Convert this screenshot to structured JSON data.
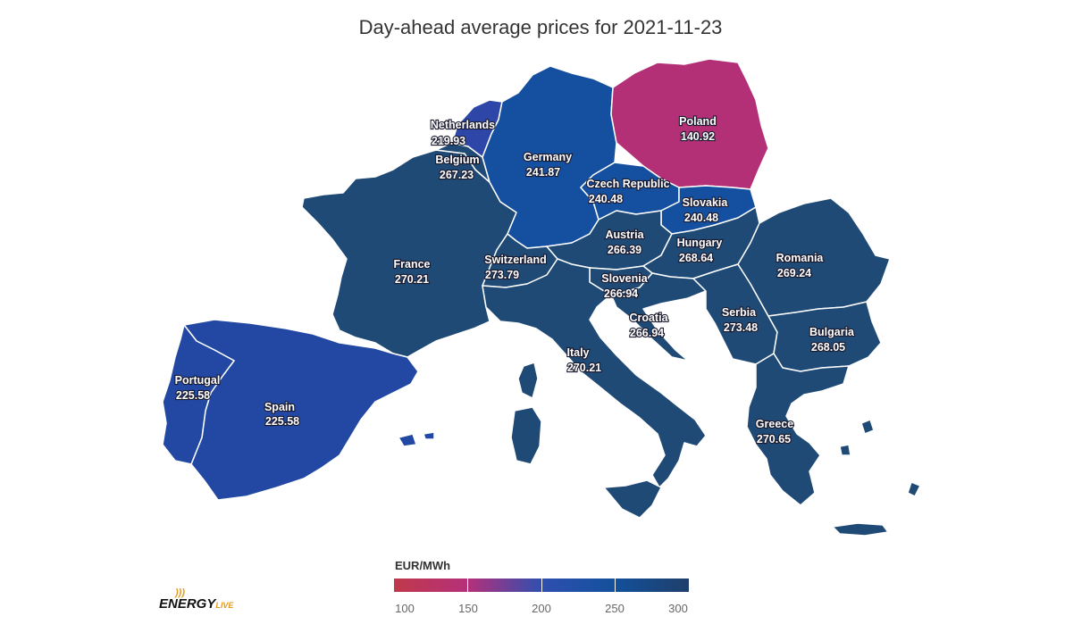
{
  "title": "Day-ahead average prices for 2021-11-23",
  "legend": {
    "unit": "EUR/MWh",
    "ticks": [
      "100",
      "150",
      "200",
      "250",
      "300"
    ],
    "min": 100,
    "max": 300
  },
  "logo": {
    "main": "ENERGY",
    "sub": "LIVE"
  },
  "colors": {
    "low": "#c0394b",
    "pink": "#b5307a",
    "blue": "#2f4fb0",
    "mid_blue": "#13509b",
    "high": "#1f3f6a"
  },
  "countries": [
    {
      "name": "Netherlands",
      "price": "219.93"
    },
    {
      "name": "Belgium",
      "price": "267.23"
    },
    {
      "name": "Germany",
      "price": "241.87"
    },
    {
      "name": "Poland",
      "price": "140.92"
    },
    {
      "name": "Czech Republic",
      "price": "240.48"
    },
    {
      "name": "Slovakia",
      "price": "240.48"
    },
    {
      "name": "Austria",
      "price": "266.39"
    },
    {
      "name": "Hungary",
      "price": "268.64"
    },
    {
      "name": "Romania",
      "price": "269.24"
    },
    {
      "name": "France",
      "price": "270.21"
    },
    {
      "name": "Switzerland",
      "price": "273.79"
    },
    {
      "name": "Slovenia",
      "price": "266.94"
    },
    {
      "name": "Croatia",
      "price": "266.94"
    },
    {
      "name": "Serbia",
      "price": "273.48"
    },
    {
      "name": "Bulgaria",
      "price": "268.05"
    },
    {
      "name": "Italy",
      "price": "270.21"
    },
    {
      "name": "Portugal",
      "price": "225.58"
    },
    {
      "name": "Spain",
      "price": "225.58"
    },
    {
      "name": "Greece",
      "price": "270.65"
    }
  ]
}
